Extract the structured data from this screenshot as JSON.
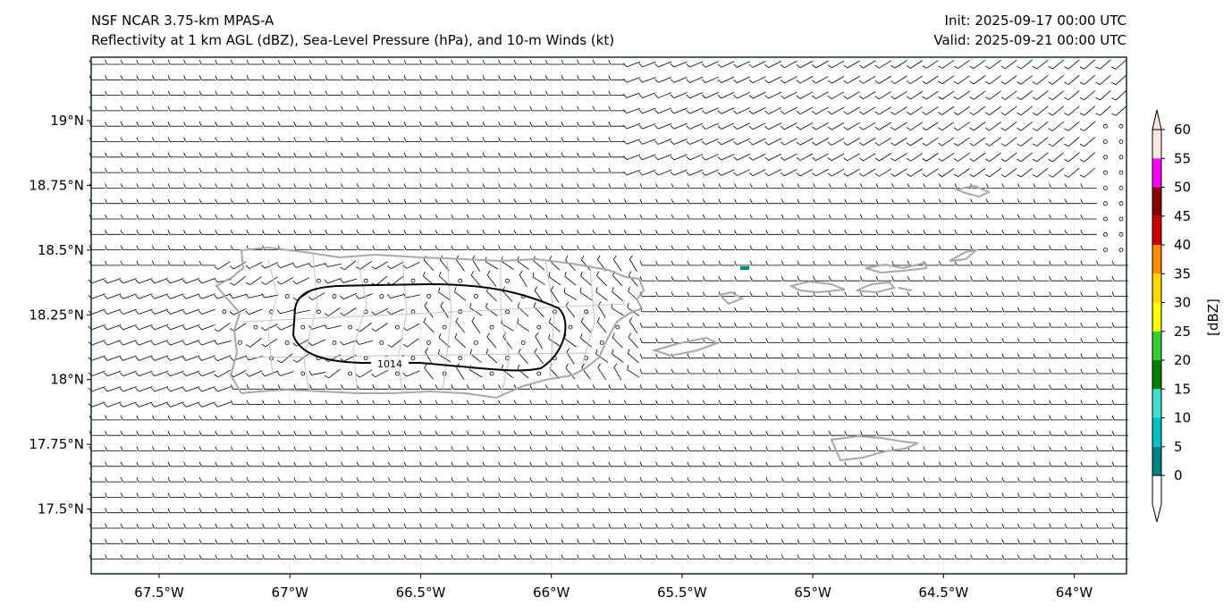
{
  "header": {
    "model": "NSF NCAR 3.75-km MPAS-A",
    "fields": "Reflectivity at 1 km AGL (dBZ), Sea-Level Pressure (hPa), and 10-m Winds (kt)",
    "init": "Init: 2025-09-17 00:00 UTC",
    "valid": "Valid: 2025-09-21 00:00 UTC"
  },
  "chart_data": {
    "type": "map",
    "title": "Reflectivity at 1 km AGL (dBZ), Sea-Level Pressure (hPa), and 10-m Winds (kt)",
    "lon_range": [
      -67.76,
      -63.8
    ],
    "lat_range": [
      17.25,
      19.245
    ],
    "x_ticks": [
      "67.5°W",
      "67°W",
      "66.5°W",
      "66°W",
      "65.5°W",
      "65°W",
      "64.5°W",
      "64°W"
    ],
    "x_tick_values": [
      -67.5,
      -67,
      -66.5,
      -66,
      -65.5,
      -65,
      -64.5,
      -64
    ],
    "y_ticks": [
      "19°N",
      "18.75°N",
      "18.5°N",
      "18.25°N",
      "18°N",
      "17.75°N",
      "17.5°N"
    ],
    "y_tick_values": [
      19,
      18.75,
      18.5,
      18.25,
      18,
      17.75,
      17.5
    ],
    "contours": [
      {
        "field": "Sea-Level Pressure",
        "value": 1014,
        "label": "1014"
      }
    ],
    "colorbar": {
      "label": "[dBZ]",
      "ticks": [
        "0",
        "5",
        "10",
        "15",
        "20",
        "25",
        "30",
        "35",
        "40",
        "45",
        "50",
        "55",
        "60"
      ],
      "levels": [
        0,
        5,
        10,
        15,
        20,
        25,
        30,
        35,
        40,
        45,
        50,
        55,
        60
      ],
      "colors": [
        "#008080",
        "#00c0c0",
        "#40e0d0",
        "#008000",
        "#32cd32",
        "#ffff00",
        "#ffd700",
        "#ff8c00",
        "#cc0000",
        "#8b0000",
        "#ff00ff",
        "#ffe4e1"
      ],
      "under_color": "#ffffff",
      "over_color": "#ffe4e1"
    }
  }
}
